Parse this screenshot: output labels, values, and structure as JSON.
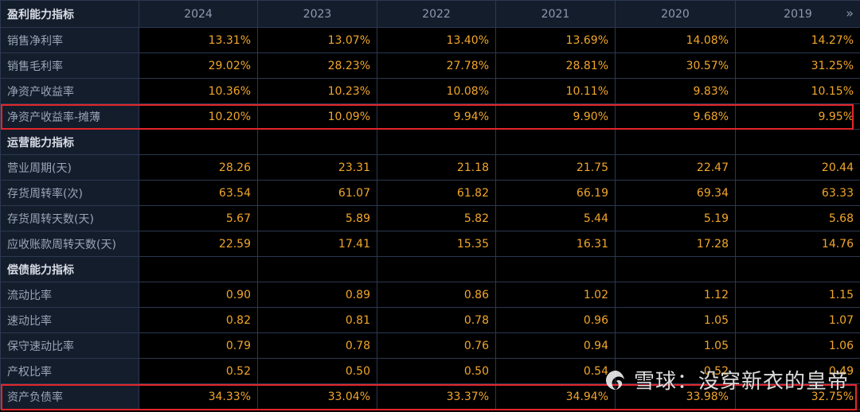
{
  "header": {
    "corner_label": "盈利能力指标",
    "years": [
      "2024",
      "2023",
      "2022",
      "2021",
      "2020",
      "2019"
    ],
    "next_icon": "double-chevron-right-icon"
  },
  "rows": [
    {
      "label": "销售净利率",
      "values": [
        "13.31%",
        "13.07%",
        "13.40%",
        "13.69%",
        "14.08%",
        "14.27%"
      ]
    },
    {
      "label": "销售毛利率",
      "values": [
        "29.02%",
        "28.23%",
        "27.78%",
        "28.81%",
        "30.57%",
        "31.25%"
      ]
    },
    {
      "label": "净资产收益率",
      "values": [
        "10.36%",
        "10.23%",
        "10.08%",
        "10.11%",
        "9.83%",
        "10.15%"
      ]
    },
    {
      "label": "净资产收益率-摊薄",
      "values": [
        "10.20%",
        "10.09%",
        "9.94%",
        "9.90%",
        "9.68%",
        "9.95%"
      ],
      "highlight": true
    },
    {
      "label": "运营能力指标",
      "section": true
    },
    {
      "label": "营业周期(天)",
      "values": [
        "28.26",
        "23.31",
        "21.18",
        "21.75",
        "22.47",
        "20.44"
      ]
    },
    {
      "label": "存货周转率(次)",
      "values": [
        "63.54",
        "61.07",
        "61.82",
        "66.19",
        "69.34",
        "63.33"
      ]
    },
    {
      "label": "存货周转天数(天)",
      "values": [
        "5.67",
        "5.89",
        "5.82",
        "5.44",
        "5.19",
        "5.68"
      ]
    },
    {
      "label": "应收账款周转天数(天)",
      "values": [
        "22.59",
        "17.41",
        "15.35",
        "16.31",
        "17.28",
        "14.76"
      ]
    },
    {
      "label": "偿债能力指标",
      "section": true
    },
    {
      "label": "流动比率",
      "values": [
        "0.90",
        "0.89",
        "0.86",
        "1.02",
        "1.12",
        "1.15"
      ]
    },
    {
      "label": "速动比率",
      "values": [
        "0.82",
        "0.81",
        "0.78",
        "0.96",
        "1.05",
        "1.07"
      ]
    },
    {
      "label": "保守速动比率",
      "values": [
        "0.79",
        "0.78",
        "0.76",
        "0.94",
        "1.05",
        "1.06"
      ]
    },
    {
      "label": "产权比率",
      "values": [
        "0.52",
        "0.50",
        "0.50",
        "0.54",
        "0.52",
        "0.49"
      ]
    },
    {
      "label": "资产负债率",
      "values": [
        "34.33%",
        "33.04%",
        "33.37%",
        "34.94%",
        "33.98%",
        "32.75%"
      ],
      "highlight": true
    }
  ],
  "watermark": {
    "text": "雪球：没穿新衣的皇帝"
  },
  "colors": {
    "value_text": "#f2a62a",
    "label_text": "#9aa5b7",
    "section_text": "#d8dde6",
    "label_bg": "#141d2c",
    "value_bg": "#000000",
    "grid": "#2c3850",
    "highlight_border": "#e3262a"
  }
}
